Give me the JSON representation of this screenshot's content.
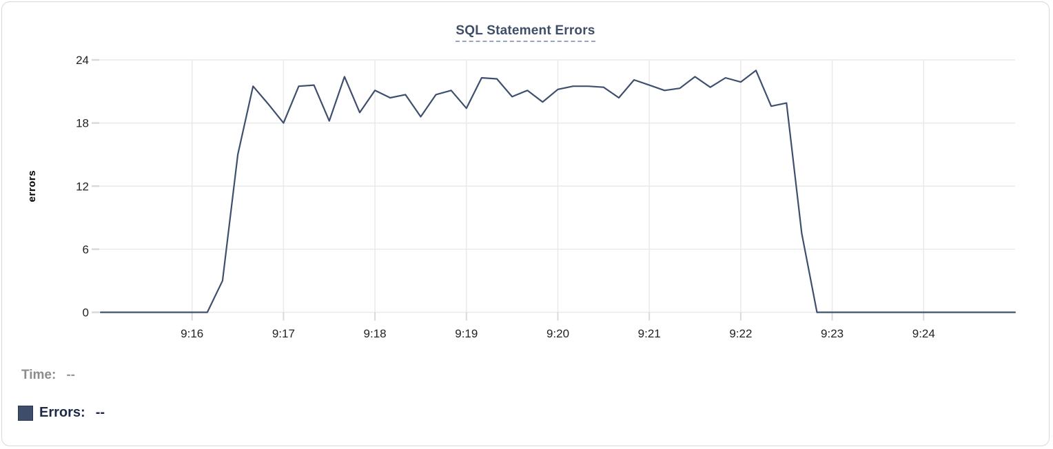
{
  "chart_data": {
    "type": "line",
    "title": "SQL Statement Errors",
    "xlabel": "",
    "ylabel": "errors",
    "ylim": [
      0,
      24
    ],
    "yticks": [
      0,
      6,
      12,
      18,
      24
    ],
    "xtick_labels": [
      "9:16",
      "9:17",
      "9:18",
      "9:19",
      "9:20",
      "9:21",
      "9:22",
      "9:23",
      "9:24"
    ],
    "x_range": [
      "9:15:00",
      "9:25:00"
    ],
    "x_interval_seconds": 10,
    "grid": true,
    "legend_position": "bottom-left",
    "series": [
      {
        "name": "Errors",
        "color": "#3e4f6d",
        "x": [
          "9:15:00",
          "9:15:10",
          "9:15:20",
          "9:15:30",
          "9:15:40",
          "9:15:50",
          "9:16:00",
          "9:16:10",
          "9:16:20",
          "9:16:30",
          "9:16:40",
          "9:16:50",
          "9:17:00",
          "9:17:10",
          "9:17:20",
          "9:17:30",
          "9:17:40",
          "9:17:50",
          "9:18:00",
          "9:18:10",
          "9:18:20",
          "9:18:30",
          "9:18:40",
          "9:18:50",
          "9:19:00",
          "9:19:10",
          "9:19:20",
          "9:19:30",
          "9:19:40",
          "9:19:50",
          "9:20:00",
          "9:20:10",
          "9:20:20",
          "9:20:30",
          "9:20:40",
          "9:20:50",
          "9:21:00",
          "9:21:10",
          "9:21:20",
          "9:21:30",
          "9:21:40",
          "9:21:50",
          "9:22:00",
          "9:22:10",
          "9:22:20",
          "9:22:30",
          "9:22:40",
          "9:22:50",
          "9:23:00",
          "9:23:10",
          "9:23:20",
          "9:23:30",
          "9:23:40",
          "9:23:50",
          "9:24:00",
          "9:24:10",
          "9:24:20",
          "9:24:30",
          "9:24:40",
          "9:24:50",
          "9:25:00"
        ],
        "values": [
          0,
          0,
          0,
          0,
          0,
          0,
          0,
          0,
          3,
          15,
          21.5,
          19.8,
          18,
          21.5,
          21.6,
          18.2,
          22.4,
          19,
          21.1,
          20.4,
          20.7,
          18.6,
          20.7,
          21.1,
          19.4,
          22.3,
          22.2,
          20.5,
          21.1,
          20,
          21.2,
          21.5,
          21.5,
          21.4,
          20.4,
          22.1,
          21.6,
          21.1,
          21.3,
          22.4,
          21.4,
          22.3,
          21.9,
          23,
          19.6,
          19.9,
          7.5,
          0,
          0,
          0,
          0,
          0,
          0,
          0,
          0,
          0,
          0,
          0,
          0,
          0,
          0
        ]
      }
    ]
  },
  "legend": {
    "time_label": "Time:",
    "time_value": "--",
    "series_label": "Errors:",
    "series_value": "--",
    "swatch_color": "#3e4d69"
  },
  "colors": {
    "line": "#3e4f6d",
    "title": "#3e4e67",
    "title_underline": "#97a4ba",
    "grid": "#e9e9e9",
    "tick": "#d9d9d9",
    "axis_text": "#222222",
    "legend_muted": "#8c8c8c",
    "legend_dark": "#1c2947",
    "card_border": "#d9d9d9"
  }
}
